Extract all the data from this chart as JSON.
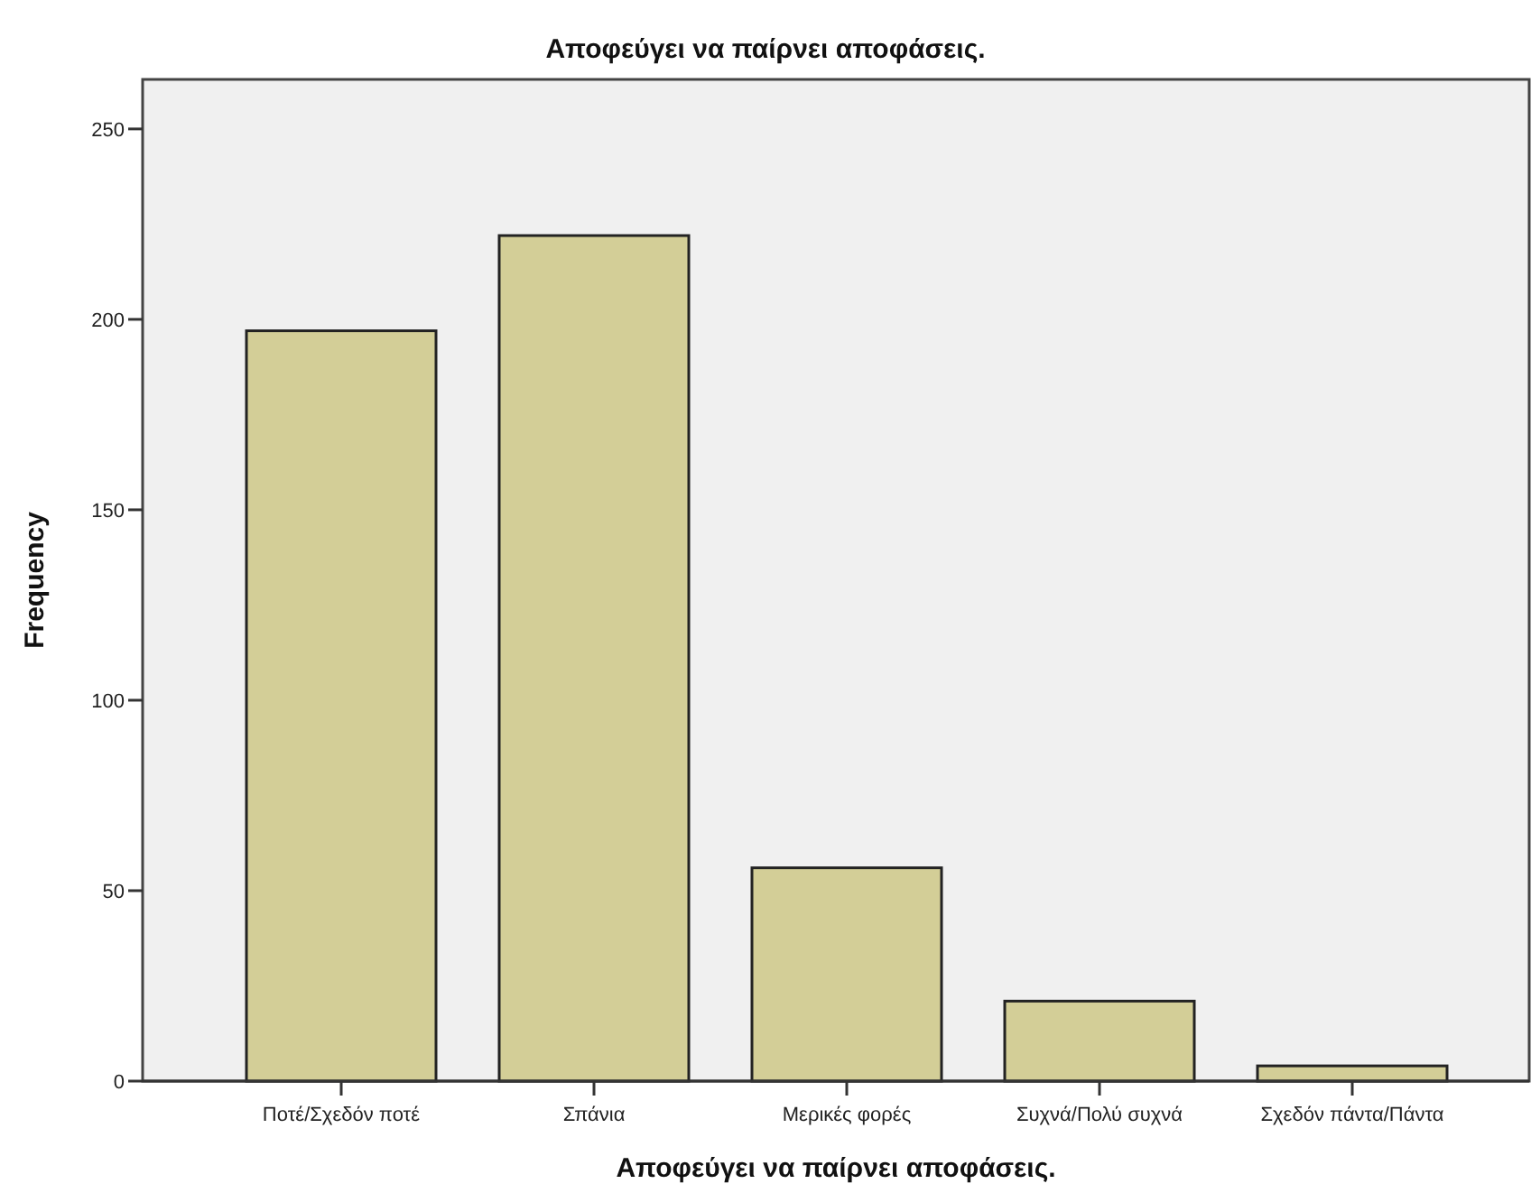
{
  "chart_data": {
    "type": "bar",
    "title": "Αποφεύγει να παίρνει αποφάσεις.",
    "xlabel": "Αποφεύγει να παίρνει αποφάσεις.",
    "ylabel": "Frequency",
    "categories": [
      "Ποτέ/Σχεδόν ποτέ",
      "Σπάνια",
      "Μερικές φορές",
      "Συχνά/Πολύ συχνά",
      "Σχεδόν πάντα/Πάντα"
    ],
    "values": [
      197,
      222,
      56,
      21,
      4
    ],
    "color": "#d3ce97",
    "ylim": [
      0,
      263
    ],
    "yticks": [
      0,
      50,
      100,
      150,
      200,
      250
    ],
    "grid": false
  }
}
